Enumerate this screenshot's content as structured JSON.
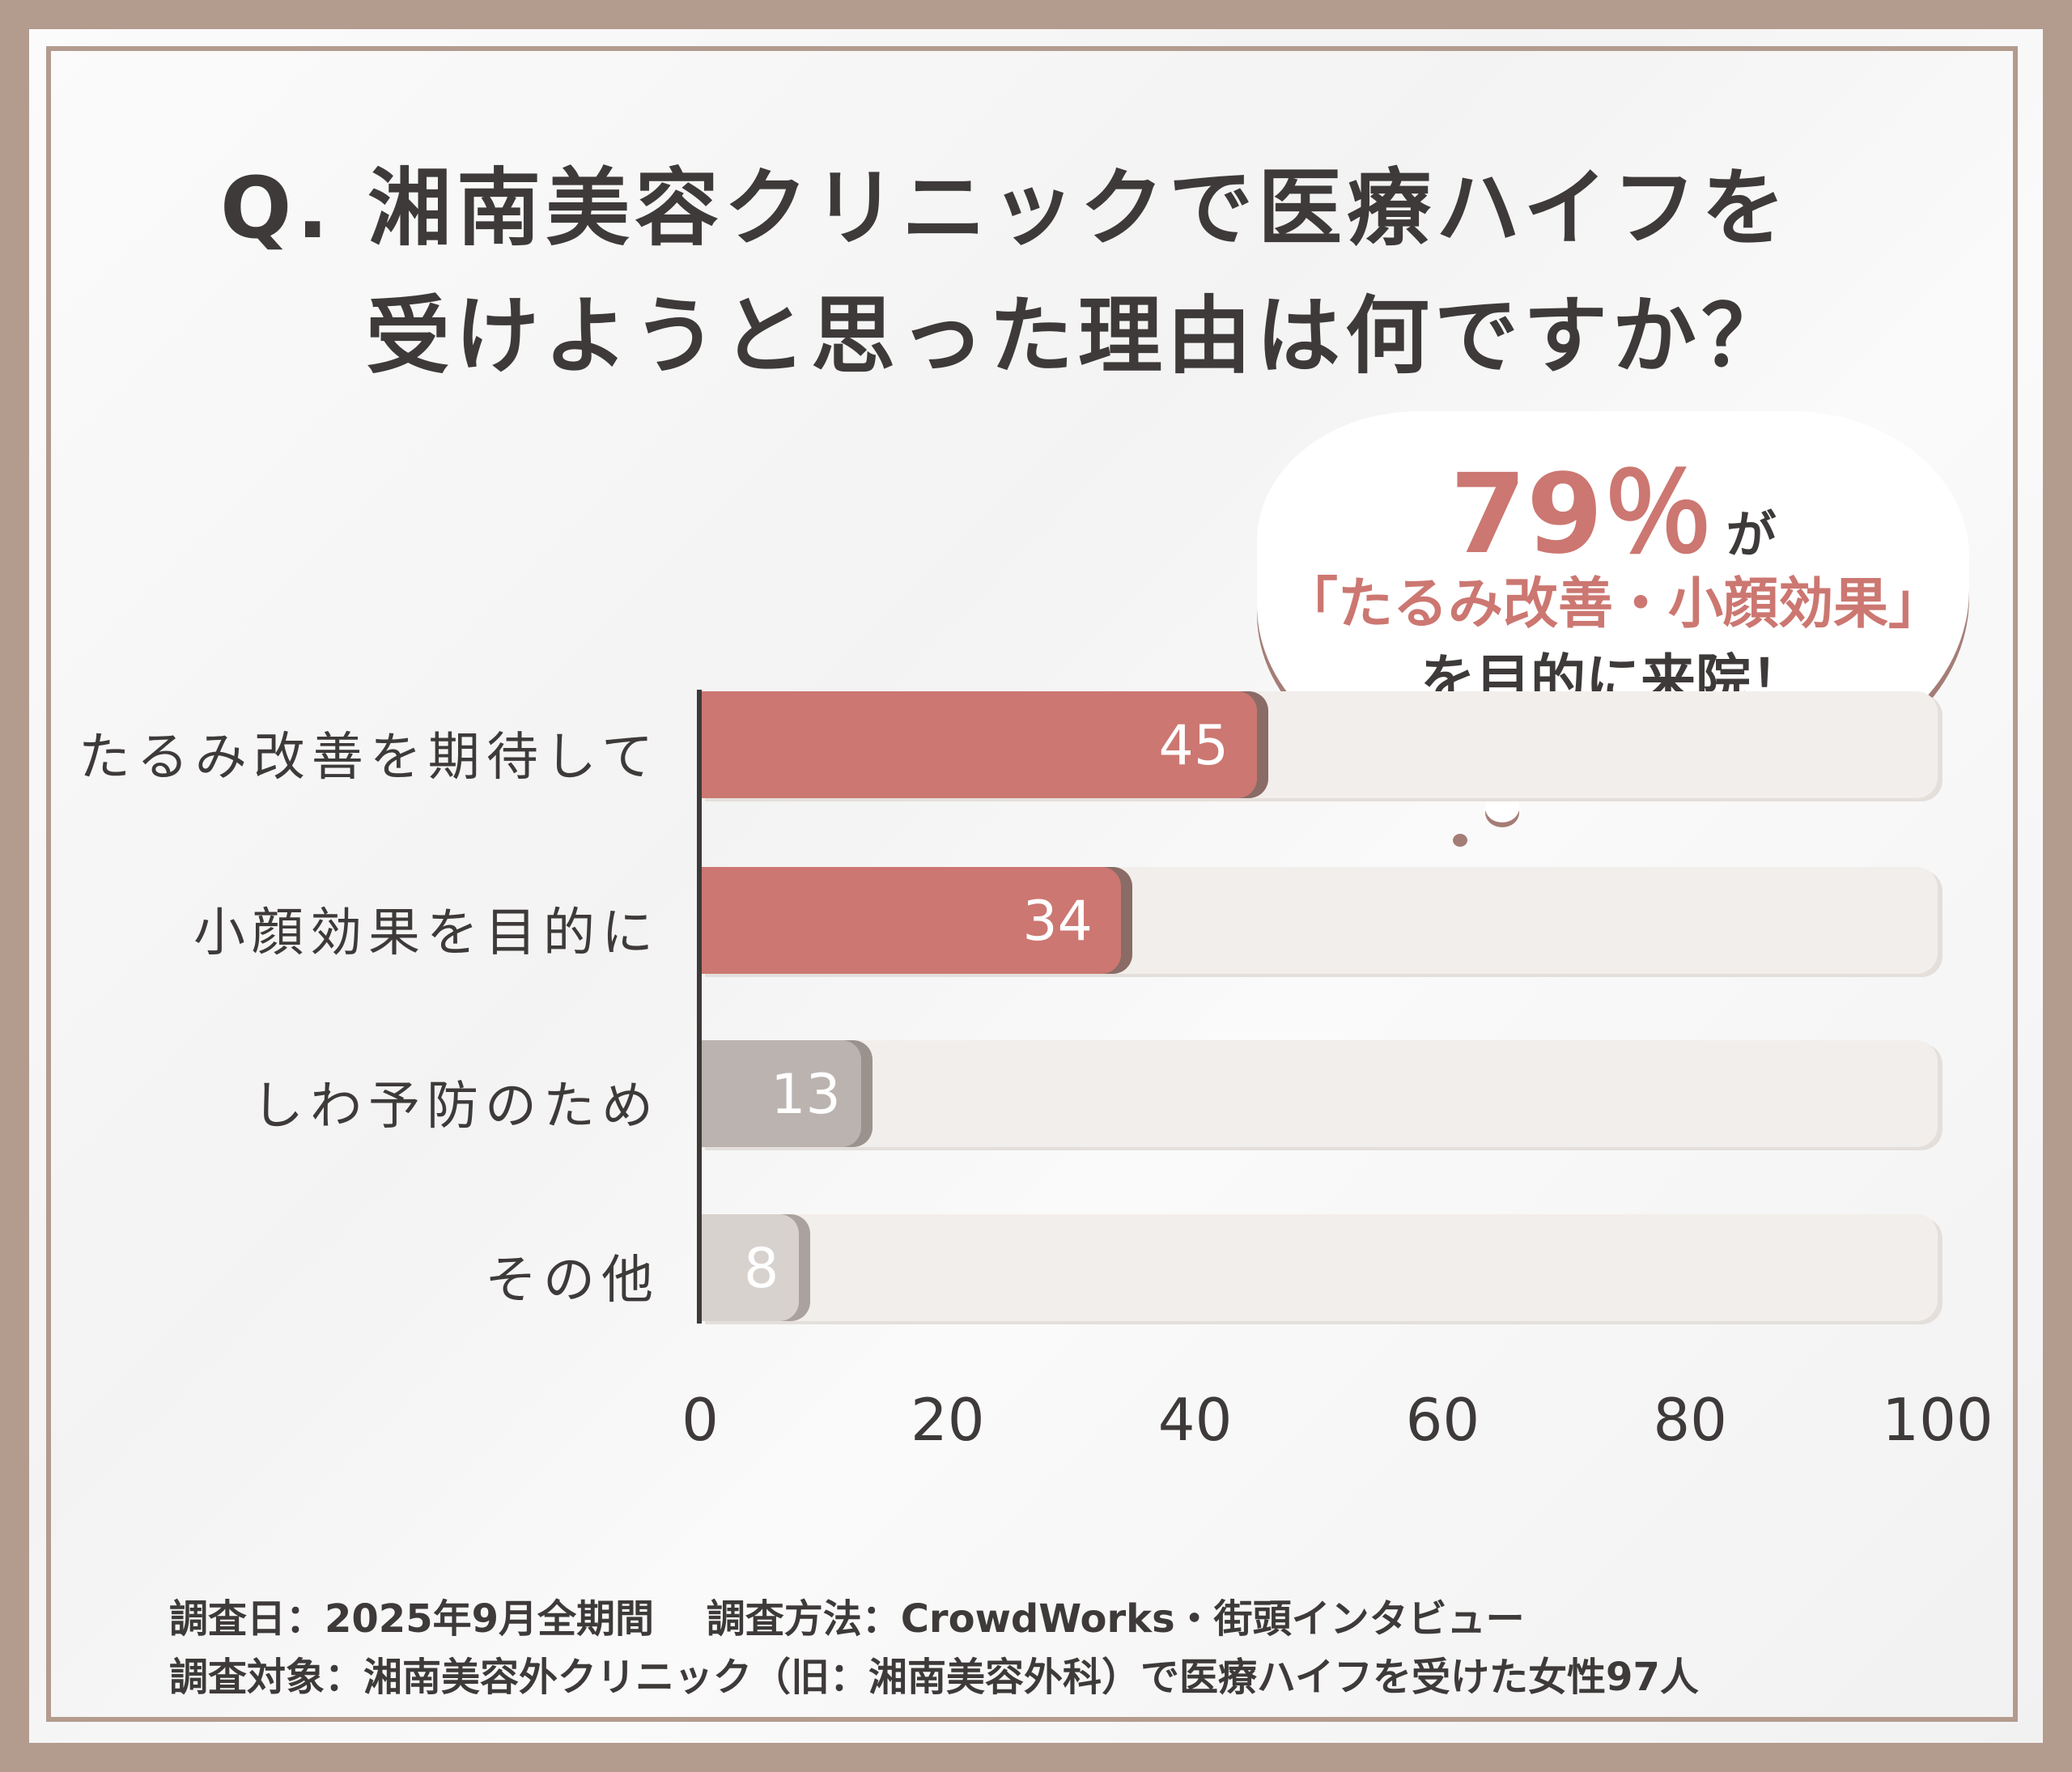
{
  "title": {
    "line1": "Q. 湘南美容クリニックで医療ハイフを",
    "line2": "受けようと思った理由は何ですか？"
  },
  "callout": {
    "percent": "79％",
    "suffix": "が",
    "line2": "「たるみ改善・小顔効果」",
    "line3": "を目的に来院！"
  },
  "chart_data": {
    "type": "bar",
    "orientation": "horizontal",
    "title": "Q. 湘南美容クリニックで医療ハイフを受けようと思った理由は何ですか？",
    "categories": [
      "たるみ改善を期待して",
      "小顔効果を目的に",
      "しわ予防のため",
      "その他"
    ],
    "values": [
      45,
      34,
      13,
      8
    ],
    "value_labels": [
      "45",
      "34",
      "13",
      "8"
    ],
    "xlim": [
      0,
      100
    ],
    "ticks": [
      "0",
      "20",
      "40",
      "60",
      "80",
      "100"
    ],
    "tick_values": [
      0,
      20,
      40,
      60,
      80,
      100
    ],
    "colors": [
      "#cc7771",
      "#cc7771",
      "#bbb3af",
      "#d8d2cf"
    ],
    "edge_colors": [
      "#8a6b66",
      "#8a6b66",
      "#9b928e",
      "#aaa29e"
    ],
    "grid": false
  },
  "footer": {
    "line1": "調査日：2025年9月全期間　 調査方法：CrowdWorks・街頭インタビュー",
    "line2": "調査対象：湘南美容外クリニック（旧：湘南美容外科）で医療ハイフを受けた女性97人"
  },
  "colors": {
    "frame": "#b39b8e",
    "accent": "#cc7771",
    "text": "#3d3a39"
  }
}
